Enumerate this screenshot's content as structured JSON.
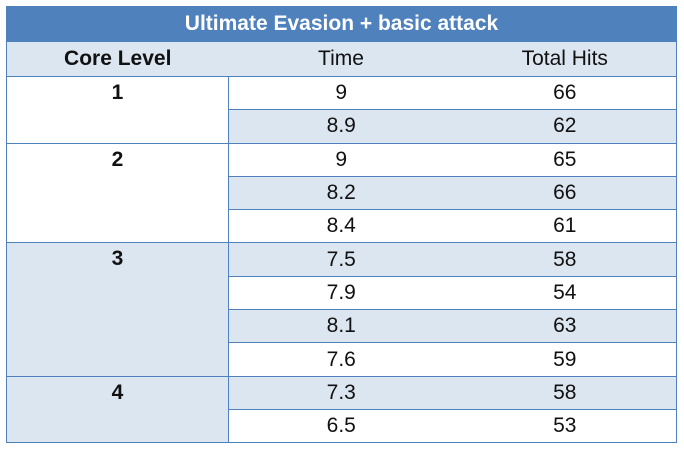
{
  "table": {
    "title": "Ultimate Evasion + basic attack",
    "headers": [
      "Core Level",
      "Time",
      "Total Hits"
    ],
    "groups": [
      {
        "level": "1",
        "rows": [
          {
            "time": "9",
            "hits": "66"
          },
          {
            "time": "8.9",
            "hits": "62"
          }
        ]
      },
      {
        "level": "2",
        "rows": [
          {
            "time": "9",
            "hits": "65"
          },
          {
            "time": "8.2",
            "hits": "66"
          },
          {
            "time": "8.4",
            "hits": "61"
          }
        ]
      },
      {
        "level": "3",
        "rows": [
          {
            "time": "7.5",
            "hits": "58"
          },
          {
            "time": "7.9",
            "hits": "54"
          },
          {
            "time": "8.1",
            "hits": "63"
          },
          {
            "time": "7.6",
            "hits": "59"
          }
        ]
      },
      {
        "level": "4",
        "rows": [
          {
            "time": "7.3",
            "hits": "58"
          },
          {
            "time": "6.5",
            "hits": "53"
          }
        ]
      }
    ],
    "colors": {
      "header_bg": "#4f81bd",
      "shade_bg": "#dce6f1",
      "plain_bg": "#ffffff",
      "border": "#4f81bd"
    }
  }
}
